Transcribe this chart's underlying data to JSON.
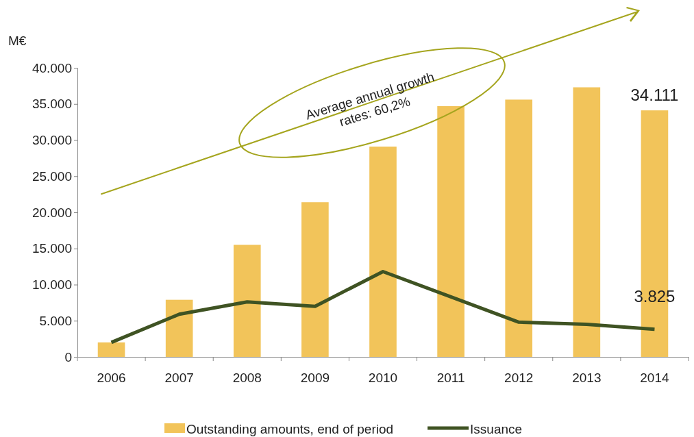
{
  "chart_data": {
    "type": "bar",
    "ylabel": "M€",
    "categories": [
      "2006",
      "2007",
      "2008",
      "2009",
      "2010",
      "2011",
      "2012",
      "2013",
      "2014"
    ],
    "series": [
      {
        "name": "Outstanding amounts, end of period",
        "color": "#f2c45a",
        "values": [
          2000,
          7900,
          15500,
          21400,
          29100,
          34700,
          35600,
          37300,
          34111
        ],
        "value_labels": [
          null,
          null,
          null,
          null,
          null,
          null,
          null,
          null,
          "34.111"
        ]
      },
      {
        "name": "Issuance",
        "type": "line",
        "color": "#3f5323",
        "values": [
          2000,
          5900,
          7600,
          7000,
          11800,
          8300,
          4800,
          4500,
          3825
        ],
        "value_labels": [
          null,
          null,
          null,
          null,
          null,
          null,
          null,
          null,
          "3.825"
        ]
      }
    ],
    "ylim": [
      0,
      40000
    ],
    "yticks": [
      {
        "value": 0,
        "label": "0"
      },
      {
        "value": 5000,
        "label": "5.000"
      },
      {
        "value": 10000,
        "label": "10.000"
      },
      {
        "value": 15000,
        "label": "15.000"
      },
      {
        "value": 20000,
        "label": "20.000"
      },
      {
        "value": 25000,
        "label": "25.000"
      },
      {
        "value": 30000,
        "label": "30.000"
      },
      {
        "value": 35000,
        "label": "35.000"
      },
      {
        "value": 40000,
        "label": "40.000"
      }
    ],
    "annotations": [
      "Average annual growth rates: 60,2%"
    ],
    "legend": "bottom",
    "grid": false,
    "marker": "none",
    "line_style": "solid"
  }
}
